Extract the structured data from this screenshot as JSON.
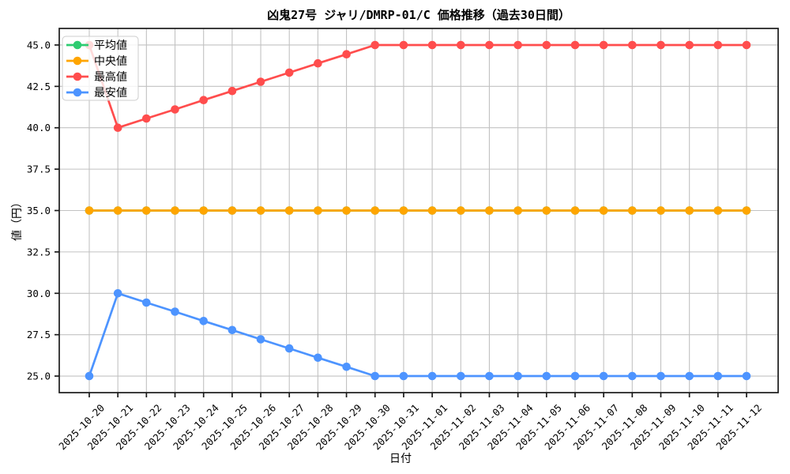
{
  "chart_data": {
    "type": "line",
    "title": "凶鬼27号 ジャリ/DMRP-01/C 価格推移（過去30日間）",
    "xlabel": "日付",
    "ylabel": "値（円）",
    "grid": true,
    "legend_position": "upper-left",
    "ylim": [
      24,
      46
    ],
    "yticks": [
      25,
      27.5,
      30,
      32.5,
      35,
      37.5,
      40,
      42.5,
      45
    ],
    "ytick_labels": [
      "25.0",
      "27.5",
      "30.0",
      "32.5",
      "35.0",
      "37.5",
      "40.0",
      "42.5",
      "45.0"
    ],
    "categories": [
      "2025-10-20",
      "2025-10-21",
      "2025-10-22",
      "2025-10-23",
      "2025-10-24",
      "2025-10-25",
      "2025-10-26",
      "2025-10-27",
      "2025-10-28",
      "2025-10-29",
      "2025-10-30",
      "2025-10-31",
      "2025-11-01",
      "2025-11-02",
      "2025-11-03",
      "2025-11-04",
      "2025-11-05",
      "2025-11-06",
      "2025-11-07",
      "2025-11-08",
      "2025-11-09",
      "2025-11-10",
      "2025-11-11",
      "2025-11-12"
    ],
    "series": [
      {
        "key": "average",
        "name": "平均値",
        "color": "#2ecc71",
        "values": [
          35,
          35,
          35,
          35,
          35,
          35,
          35,
          35,
          35,
          35,
          35,
          35,
          35,
          35,
          35,
          35,
          35,
          35,
          35,
          35,
          35,
          35,
          35,
          35
        ]
      },
      {
        "key": "median",
        "name": "中央値",
        "color": "#ffa500",
        "values": [
          35,
          35,
          35,
          35,
          35,
          35,
          35,
          35,
          35,
          35,
          35,
          35,
          35,
          35,
          35,
          35,
          35,
          35,
          35,
          35,
          35,
          35,
          35,
          35
        ]
      },
      {
        "key": "max",
        "name": "最高値",
        "color": "#ff4d4d",
        "values": [
          45,
          40,
          40.56,
          41.11,
          41.67,
          42.22,
          42.78,
          43.33,
          43.89,
          44.44,
          45,
          45,
          45,
          45,
          45,
          45,
          45,
          45,
          45,
          45,
          45,
          45,
          45,
          45
        ]
      },
      {
        "key": "min",
        "name": "最安値",
        "color": "#4d94ff",
        "values": [
          25,
          30,
          29.44,
          28.89,
          28.33,
          27.78,
          27.22,
          26.67,
          26.11,
          25.56,
          25,
          25,
          25,
          25,
          25,
          25,
          25,
          25,
          25,
          25,
          25,
          25,
          25,
          25
        ]
      }
    ],
    "colors": {
      "grid": "#c2c2c2",
      "spine": "#1a1a1a",
      "text": "#000000",
      "legend_border": "#cccccc",
      "legend_bg": "#ffffff"
    }
  }
}
